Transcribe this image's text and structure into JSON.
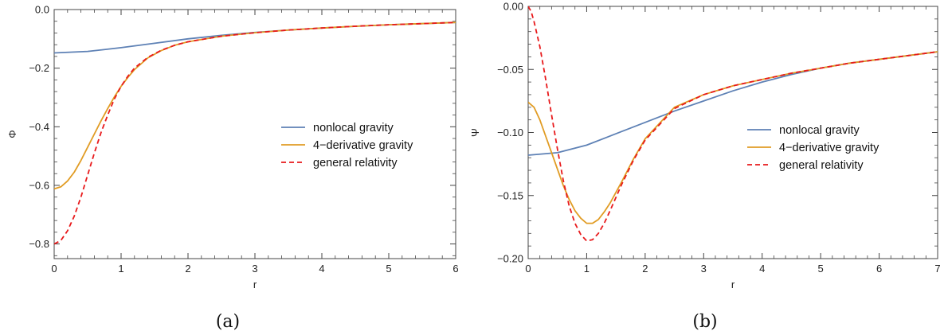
{
  "chart_data": [
    {
      "type": "line",
      "panel_caption": "(a)",
      "xlabel": "r",
      "ylabel": "Φ",
      "xlim": [
        0,
        6
      ],
      "ylim": [
        -0.85,
        0.0
      ],
      "xticks": [
        0,
        1,
        2,
        3,
        4,
        5,
        6
      ],
      "xtick_labels": [
        "0",
        "1",
        "2",
        "3",
        "4",
        "5",
        "6"
      ],
      "yticks": [
        0.0,
        -0.2,
        -0.4,
        -0.6,
        -0.8
      ],
      "ytick_labels": [
        "0.0",
        "−0.2",
        "−0.4",
        "−0.6",
        "−0.8"
      ],
      "legend_position": "center-right",
      "series": [
        {
          "name": "nonlocal gravity",
          "color": "#5e81b5",
          "style": "solid",
          "x": [
            0,
            0.5,
            1,
            1.5,
            2,
            2.5,
            3,
            3.5,
            4,
            4.5,
            5,
            5.5,
            6
          ],
          "y": [
            -0.148,
            -0.143,
            -0.13,
            -0.115,
            -0.1,
            -0.088,
            -0.078,
            -0.07,
            -0.063,
            -0.057,
            -0.052,
            -0.048,
            -0.044
          ]
        },
        {
          "name": "4−derivative gravity",
          "color": "#e19c24",
          "style": "solid",
          "x": [
            0,
            0.1,
            0.2,
            0.3,
            0.4,
            0.5,
            0.6,
            0.7,
            0.8,
            0.9,
            1.0,
            1.1,
            1.2,
            1.4,
            1.6,
            1.8,
            2.0,
            2.5,
            3.0,
            3.5,
            4,
            4.5,
            5,
            5.5,
            6
          ],
          "y": [
            -0.612,
            -0.605,
            -0.585,
            -0.555,
            -0.515,
            -0.47,
            -0.425,
            -0.38,
            -0.338,
            -0.298,
            -0.262,
            -0.232,
            -0.205,
            -0.165,
            -0.14,
            -0.122,
            -0.11,
            -0.091,
            -0.079,
            -0.07,
            -0.063,
            -0.057,
            -0.052,
            -0.048,
            -0.044
          ]
        },
        {
          "name": "general relativity",
          "color": "#e8191b",
          "style": "dashed",
          "x": [
            0,
            0.1,
            0.2,
            0.3,
            0.4,
            0.5,
            0.6,
            0.7,
            0.8,
            0.9,
            1.0,
            1.1,
            1.2,
            1.4,
            1.6,
            1.8,
            2.0,
            2.5,
            3.0,
            3.5,
            4,
            4.5,
            5,
            5.5,
            6
          ],
          "y": [
            -0.8,
            -0.788,
            -0.755,
            -0.705,
            -0.64,
            -0.565,
            -0.49,
            -0.42,
            -0.36,
            -0.305,
            -0.262,
            -0.228,
            -0.2,
            -0.163,
            -0.139,
            -0.122,
            -0.11,
            -0.091,
            -0.079,
            -0.07,
            -0.063,
            -0.057,
            -0.052,
            -0.048,
            -0.044
          ]
        }
      ]
    },
    {
      "type": "line",
      "panel_caption": "(b)",
      "xlabel": "r",
      "ylabel": "Ψ",
      "xlim": [
        0,
        7
      ],
      "ylim": [
        -0.2,
        0.0
      ],
      "xticks": [
        0,
        1,
        2,
        3,
        4,
        5,
        6,
        7
      ],
      "xtick_labels": [
        "0",
        "1",
        "2",
        "3",
        "4",
        "5",
        "6",
        "7"
      ],
      "yticks": [
        0.0,
        -0.05,
        -0.1,
        -0.15,
        -0.2
      ],
      "ytick_labels": [
        "0.00",
        "−0.05",
        "−0.10",
        "−0.15",
        "−0.20"
      ],
      "legend_position": "center-right",
      "series": [
        {
          "name": "nonlocal gravity",
          "color": "#5e81b5",
          "style": "solid",
          "x": [
            0,
            0.5,
            1,
            1.5,
            2,
            2.5,
            3,
            3.5,
            4,
            4.5,
            5,
            5.5,
            6,
            6.5,
            7
          ],
          "y": [
            -0.118,
            -0.116,
            -0.11,
            -0.101,
            -0.092,
            -0.083,
            -0.075,
            -0.067,
            -0.06,
            -0.054,
            -0.049,
            -0.045,
            -0.042,
            -0.039,
            -0.036
          ]
        },
        {
          "name": "4−derivative gravity",
          "color": "#e19c24",
          "style": "solid",
          "x": [
            0,
            0.1,
            0.2,
            0.3,
            0.4,
            0.5,
            0.6,
            0.7,
            0.8,
            0.9,
            1.0,
            1.1,
            1.2,
            1.3,
            1.4,
            1.6,
            1.8,
            2.0,
            2.5,
            3.0,
            3.5,
            4,
            4.5,
            5,
            5.5,
            6,
            6.5,
            7
          ],
          "y": [
            -0.076,
            -0.08,
            -0.09,
            -0.103,
            -0.116,
            -0.129,
            -0.142,
            -0.153,
            -0.162,
            -0.168,
            -0.172,
            -0.172,
            -0.169,
            -0.163,
            -0.156,
            -0.139,
            -0.121,
            -0.105,
            -0.08,
            -0.07,
            -0.063,
            -0.058,
            -0.053,
            -0.049,
            -0.045,
            -0.042,
            -0.039,
            -0.036
          ]
        },
        {
          "name": "general relativity",
          "color": "#e8191b",
          "style": "dashed",
          "x": [
            0,
            0.05,
            0.1,
            0.2,
            0.3,
            0.4,
            0.5,
            0.6,
            0.7,
            0.8,
            0.9,
            1.0,
            1.1,
            1.2,
            1.3,
            1.4,
            1.6,
            1.8,
            2.0,
            2.5,
            3.0,
            3.5,
            4,
            4.5,
            5,
            5.5,
            6,
            6.5,
            7
          ],
          "y": [
            0.0,
            -0.004,
            -0.012,
            -0.032,
            -0.058,
            -0.086,
            -0.113,
            -0.138,
            -0.158,
            -0.172,
            -0.181,
            -0.186,
            -0.185,
            -0.18,
            -0.172,
            -0.162,
            -0.141,
            -0.122,
            -0.106,
            -0.081,
            -0.07,
            -0.063,
            -0.058,
            -0.053,
            -0.049,
            -0.045,
            -0.042,
            -0.039,
            -0.036
          ]
        }
      ]
    }
  ]
}
